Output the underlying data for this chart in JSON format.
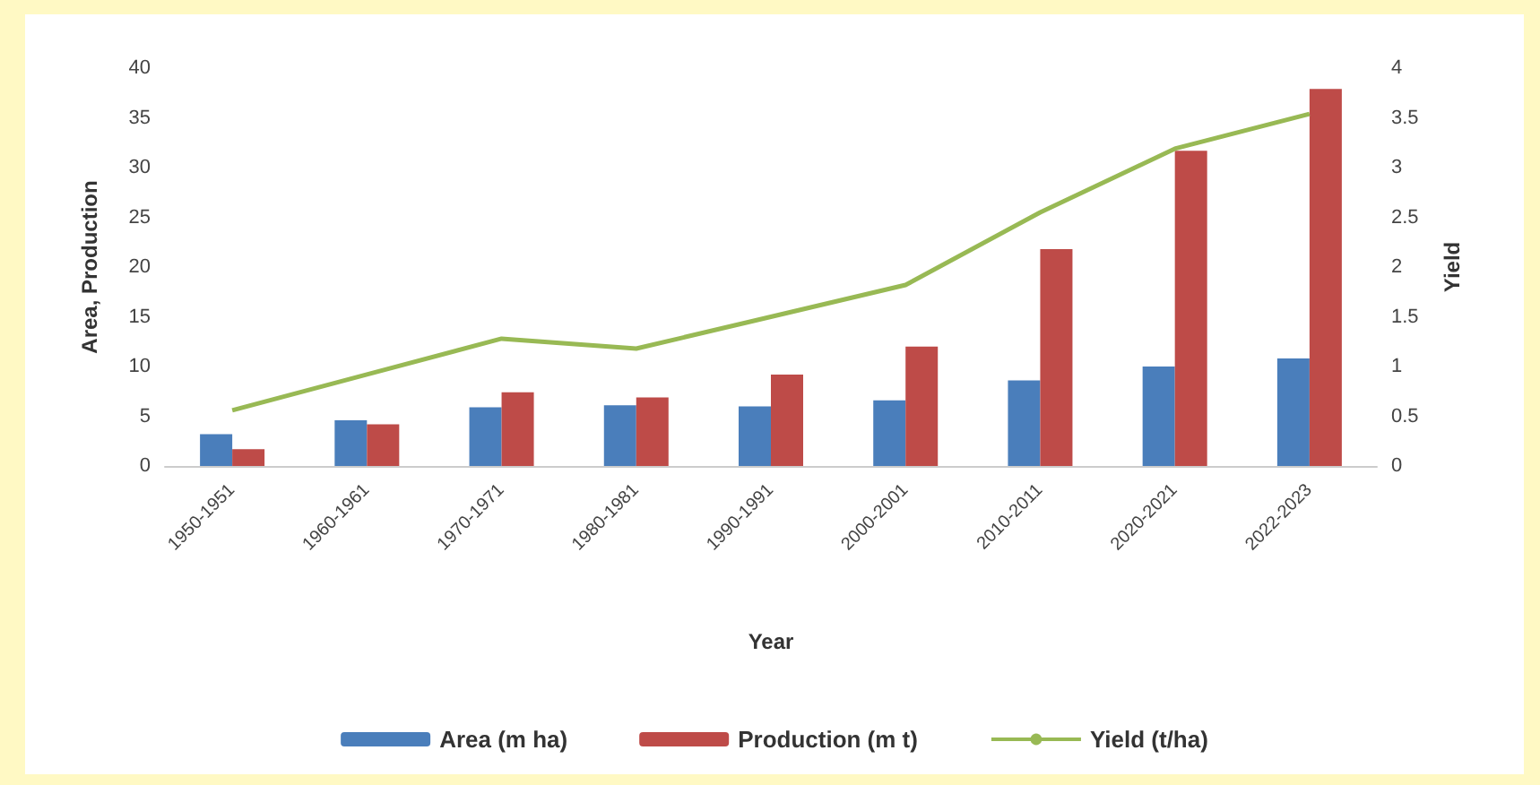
{
  "chart_data": {
    "type": "bar",
    "xlabel": "Year",
    "ylabel": "Area, Production",
    "y2label": "Yield",
    "categories": [
      "1950-1951",
      "1960-1961",
      "1970-1971",
      "1980-1981",
      "1990-1991",
      "2000-2001",
      "2010-2011",
      "2020-2021",
      "2022-2023"
    ],
    "series": [
      {
        "name": "Area (m ha)",
        "color": "#4a7ebb",
        "values": [
          3.2,
          4.6,
          5.9,
          6.1,
          6.0,
          6.6,
          8.6,
          10.0,
          10.8
        ]
      },
      {
        "name": "Production (m t)",
        "color": "#be4b48",
        "values": [
          1.7,
          4.2,
          7.4,
          6.9,
          9.2,
          12.0,
          21.8,
          31.7,
          37.9
        ]
      },
      {
        "name": "Yield (t/ha)",
        "type": "line",
        "axis": "y2",
        "color": "#98b954",
        "values": [
          0.56,
          0.92,
          1.28,
          1.18,
          1.5,
          1.82,
          2.55,
          3.19,
          3.54
        ]
      }
    ],
    "ylim": [
      0,
      40
    ],
    "yticks": [
      0,
      5,
      10,
      15,
      20,
      25,
      30,
      35,
      40
    ],
    "y2lim": [
      0,
      4
    ],
    "y2ticks": [
      0,
      0.5,
      1,
      1.5,
      2,
      2.5,
      3,
      3.5,
      4
    ],
    "grid": false,
    "legend": "bottom",
    "marker": "none"
  }
}
